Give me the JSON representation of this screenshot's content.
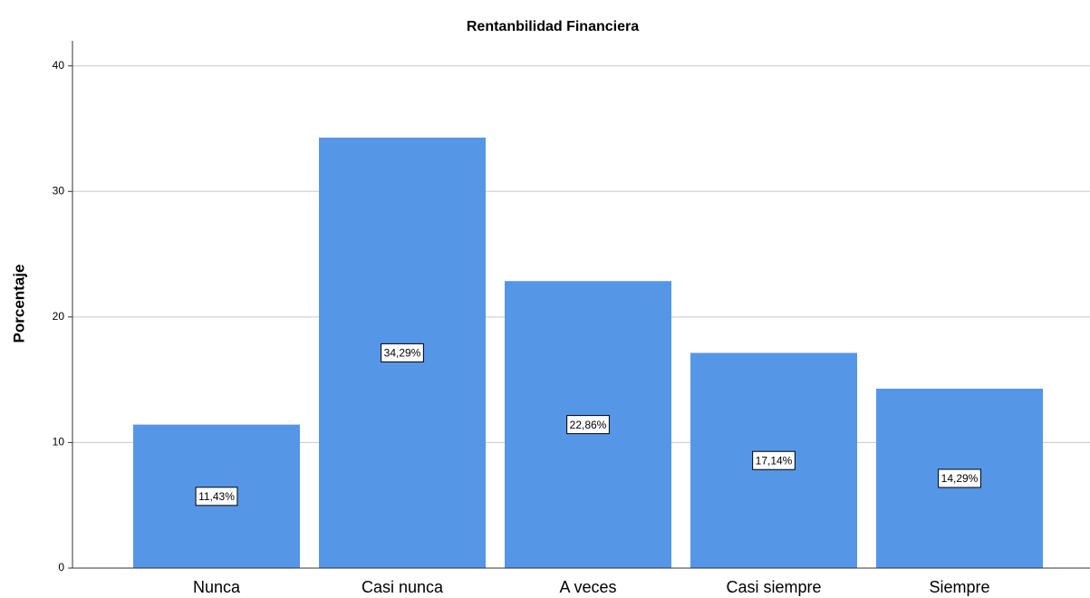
{
  "chart_data": {
    "type": "bar",
    "title": "Rentanbilidad Financiera",
    "y_label": "Porcentaje",
    "categories": [
      "Nunca",
      "Casi nunca",
      "A veces",
      "Casi siempre",
      "Siempre"
    ],
    "values": [
      11.43,
      34.29,
      22.86,
      17.14,
      14.29
    ],
    "value_labels": [
      "11,43%",
      "34,29%",
      "22,86%",
      "17,14%",
      "14,29%"
    ],
    "color": "#5596e6",
    "ylim": [
      0,
      42
    ],
    "yticks": [
      0,
      10,
      20,
      30,
      40
    ],
    "grid": true
  }
}
